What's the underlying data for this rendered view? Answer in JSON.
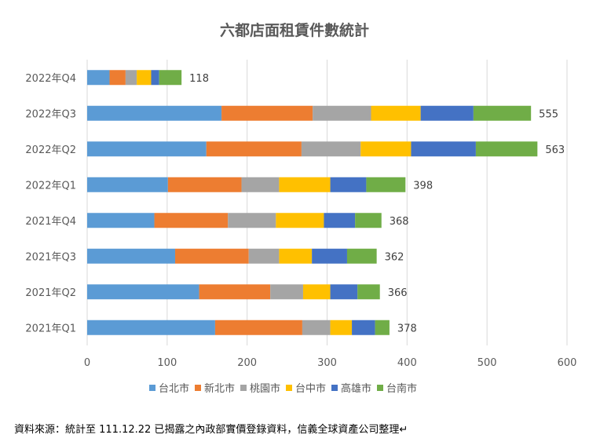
{
  "chart_data": {
    "type": "bar",
    "orientation": "horizontal",
    "stacked": true,
    "title": "六都店面租賃件數統計",
    "categories": [
      "2022年Q4",
      "2022年Q3",
      "2022年Q2",
      "2022年Q1",
      "2021年Q4",
      "2021年Q3",
      "2021年Q2",
      "2021年Q1"
    ],
    "series": [
      {
        "name": "台北市",
        "color": "#5B9BD5",
        "values": [
          28,
          168,
          149,
          101,
          84,
          110,
          140,
          160
        ]
      },
      {
        "name": "新北市",
        "color": "#ED7D31",
        "values": [
          20,
          114,
          119,
          92,
          92,
          92,
          89,
          109
        ]
      },
      {
        "name": "桃園市",
        "color": "#A5A5A5",
        "values": [
          14,
          73,
          74,
          47,
          60,
          38,
          41,
          35
        ]
      },
      {
        "name": "台中市",
        "color": "#FFC000",
        "values": [
          18,
          62,
          63,
          64,
          60,
          41,
          34,
          27
        ]
      },
      {
        "name": "高雄市",
        "color": "#4472C4",
        "values": [
          10,
          66,
          81,
          45,
          39,
          44,
          34,
          29
        ]
      },
      {
        "name": "台南市",
        "color": "#70AD47",
        "values": [
          28,
          72,
          77,
          49,
          33,
          37,
          28,
          18
        ]
      }
    ],
    "totals": [
      118,
      555,
      563,
      398,
      368,
      362,
      366,
      378
    ],
    "xlim": [
      0,
      600
    ],
    "xticks": [
      "0",
      "100",
      "200",
      "300",
      "400",
      "500",
      "600"
    ],
    "grid": true,
    "legend": "bottom"
  },
  "footer": "資料來源：統計至 111.12.22 已揭露之內政部實價登錄資料，信義全球資產公司整理↵"
}
